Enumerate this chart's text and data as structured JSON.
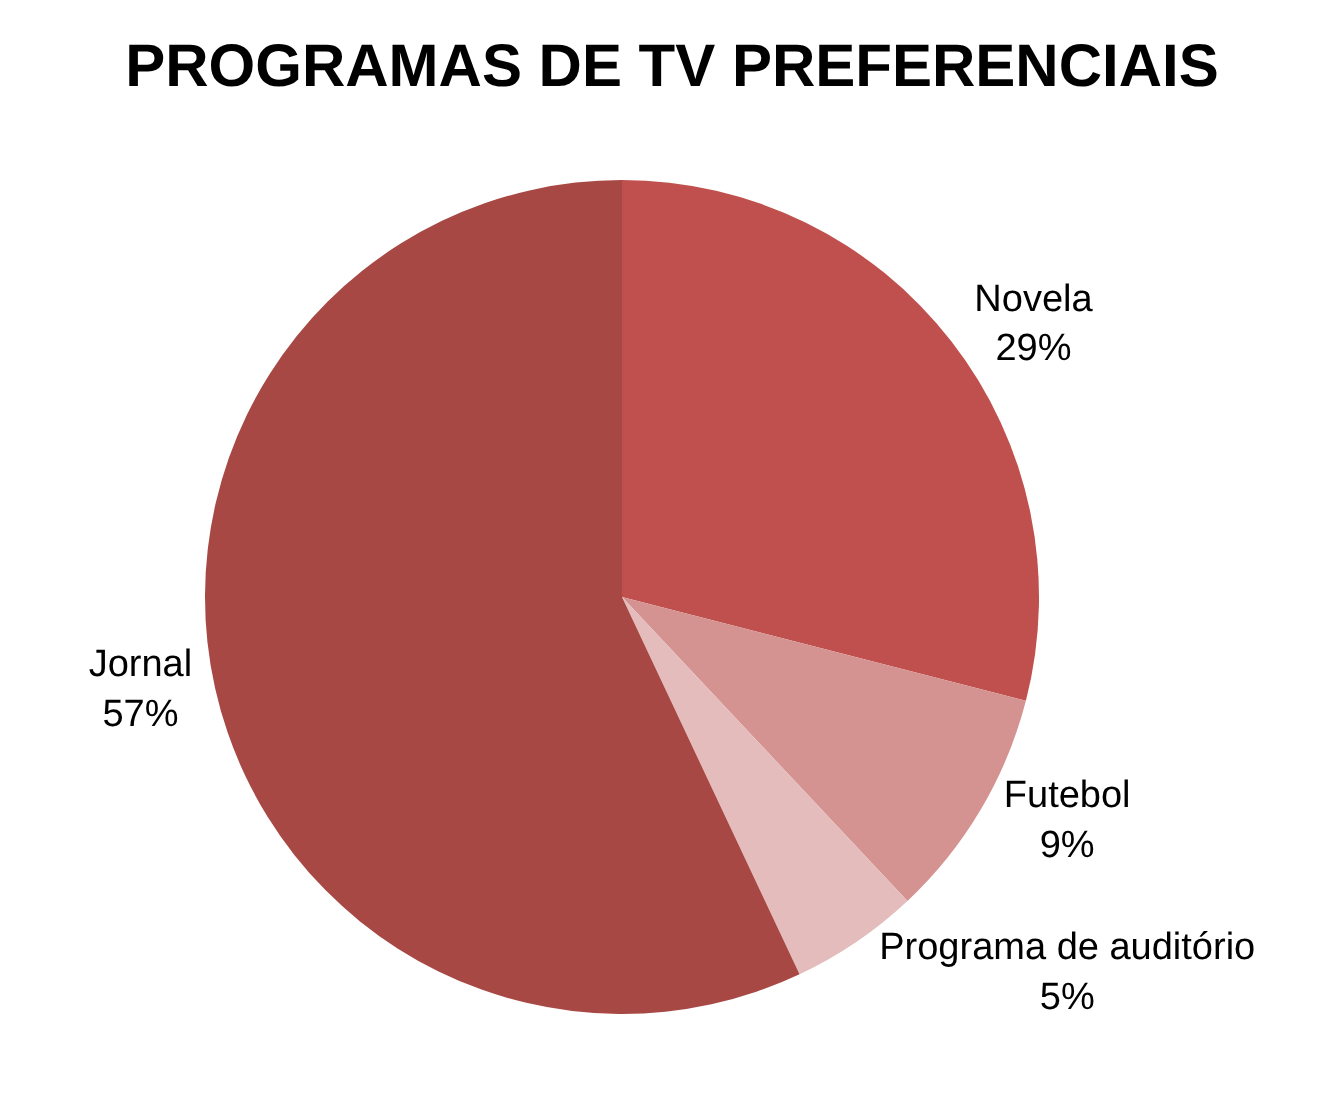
{
  "chart_data": {
    "type": "pie",
    "title": "PROGRAMAS DE TV PREFERENCIAIS",
    "categories": [
      "Novela",
      "Futebol",
      "Programa de auditório",
      "Jornal"
    ],
    "values": [
      29,
      9,
      5,
      57
    ],
    "value_labels": [
      "29%",
      "9%",
      "5%",
      "57%"
    ],
    "colors": [
      "#c0504d",
      "#d49391",
      "#e4bcbc",
      "#a84844"
    ],
    "legend": false
  }
}
